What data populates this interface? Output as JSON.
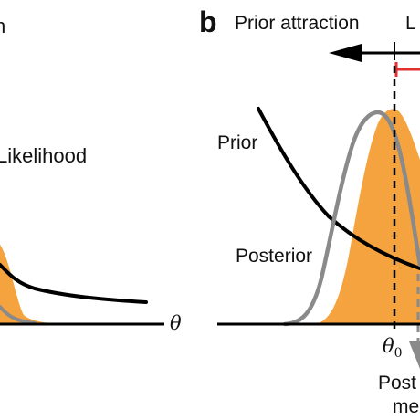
{
  "panel_a": {
    "title_fragment": "h",
    "likelihood_label": "Likelihood",
    "theta_axis_label": "θ"
  },
  "panel_b": {
    "panel_letter": "b",
    "prior_attraction_label": "Prior attraction",
    "top_right_fragment": "L",
    "prior_label": "Prior",
    "posterior_label": "Posterior",
    "theta0_label": "θ",
    "theta0_subscript": "0",
    "posterior_mean_line1": "Post",
    "posterior_mean_line2": "me"
  },
  "colors": {
    "likelihood_fill": "#F5A33E",
    "prior_curve": "#000000",
    "posterior_curve": "#8A8A8A",
    "bias_marker": "#E03030",
    "axis": "#000000"
  }
}
